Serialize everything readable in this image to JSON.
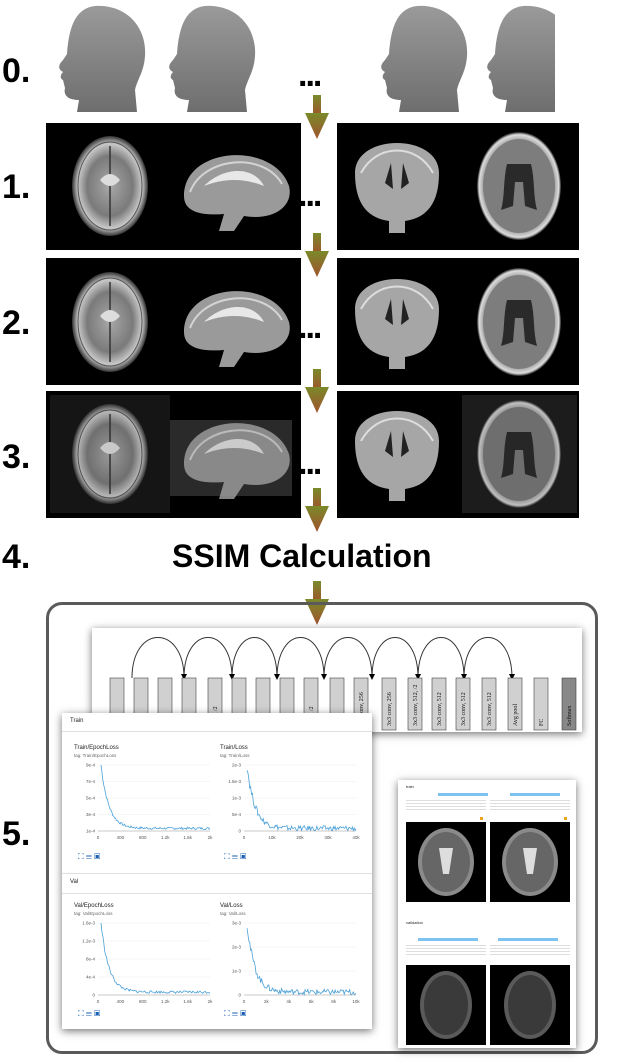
{
  "steps": [
    "0.",
    "1.",
    "2.",
    "3.",
    "4.",
    "5."
  ],
  "ellipsis": "...",
  "ssim_title": "SSIM Calculation",
  "resnet_layers": [
    ", 64",
    ", 64",
    ", 64",
    ", 64",
    ", 128, /2",
    ", 128",
    ", 128",
    ", 128",
    ", 256, /2",
    ", 256",
    "3x3 conv, 256",
    "3x3 conv, 256",
    "3x3 conv, 512, /2",
    "3x3 conv, 512",
    "3x3 conv, 512",
    "3x3 conv, 512",
    "Avg pool",
    "FC",
    "Softmax"
  ],
  "tensorboard": {
    "train_section": "Train",
    "val_section": "Val",
    "charts": [
      {
        "title": "Train/EpochLoss",
        "tag": "tag: Train/EpochLoss",
        "yticks": [
          "9e-4",
          "7e-4",
          "5e-4",
          "3e-4",
          "1e-4"
        ],
        "xticks": [
          "0",
          "400",
          "800",
          "1.2k",
          "1.6k",
          "2k"
        ]
      },
      {
        "title": "Train/Loss",
        "tag": "tag: Train/Loss",
        "yticks": [
          "2e-3",
          "1.5e-3",
          "1e-3",
          "5e-4",
          "0"
        ],
        "xticks": [
          "0",
          "10k",
          "20k",
          "30k",
          "40k"
        ]
      },
      {
        "title": "Val/EpochLoss",
        "tag": "tag: Val/EpochLoss",
        "yticks": [
          "1.6e-3",
          "1.2e-3",
          "8e-4",
          "4e-4",
          "0"
        ],
        "xticks": [
          "0",
          "400",
          "800",
          "1.2k",
          "1.6k",
          "2k"
        ]
      },
      {
        "title": "Val/Loss",
        "tag": "tag: Val/Loss",
        "yticks": [
          "3e-3",
          "2e-3",
          "1e-3",
          "0"
        ],
        "xticks": [
          "0",
          "2k",
          "4k",
          "6k",
          "8k",
          "10k"
        ]
      }
    ]
  },
  "images_panel": {
    "section1": "train",
    "section2": "validation"
  },
  "colors": {
    "arrow_top": "#7a8a2a",
    "arrow_bottom": "#a0522d",
    "curve": "#4aa0d8",
    "frame": "#5a5a5a"
  }
}
